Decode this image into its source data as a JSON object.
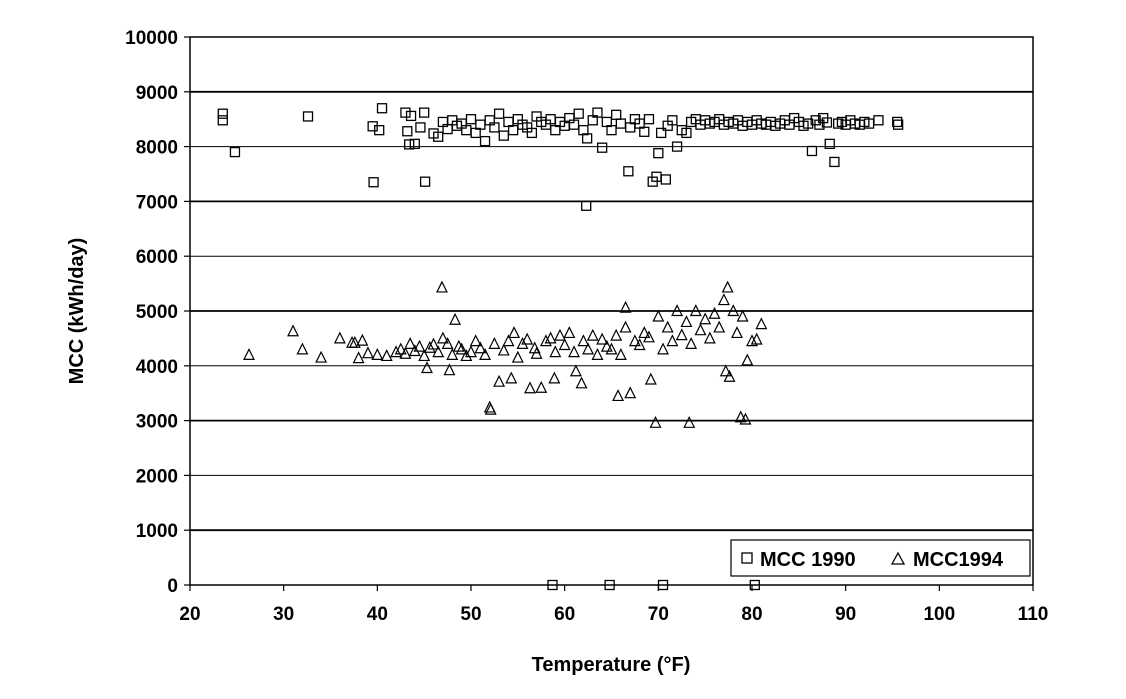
{
  "chart_data": {
    "type": "scatter",
    "title": "",
    "xlabel": "Temperature (°F)",
    "ylabel": "MCC (kWh/day)",
    "xlim": [
      20,
      110
    ],
    "ylim": [
      0,
      10000
    ],
    "x_ticks": [
      "20",
      "30",
      "40",
      "50",
      "60",
      "70",
      "80",
      "90",
      "100",
      "110"
    ],
    "y_ticks": [
      "0",
      "1000",
      "2000",
      "3000",
      "4000",
      "5000",
      "6000",
      "7000",
      "8000",
      "9000",
      "10000"
    ],
    "grid": "horizontal",
    "legend_position": "bottom-right",
    "series": [
      {
        "name": "MCC 1990",
        "marker": "square",
        "points": [
          [
            23.5,
            8600
          ],
          [
            23.5,
            8480
          ],
          [
            24.8,
            7900
          ],
          [
            32.6,
            8550
          ],
          [
            39.5,
            8370
          ],
          [
            39.6,
            7350
          ],
          [
            40.2,
            8300
          ],
          [
            40.5,
            8700
          ],
          [
            43,
            8620
          ],
          [
            43.2,
            8280
          ],
          [
            43.4,
            8040
          ],
          [
            43.6,
            8560
          ],
          [
            44,
            8050
          ],
          [
            44.6,
            8350
          ],
          [
            45,
            8620
          ],
          [
            45.1,
            7360
          ],
          [
            46,
            8240
          ],
          [
            46.5,
            8180
          ],
          [
            47,
            8450
          ],
          [
            47.5,
            8320
          ],
          [
            48,
            8480
          ],
          [
            48.5,
            8380
          ],
          [
            49,
            8420
          ],
          [
            49.5,
            8300
          ],
          [
            50,
            8500
          ],
          [
            50.5,
            8250
          ],
          [
            51,
            8400
          ],
          [
            51.5,
            8100
          ],
          [
            52,
            8480
          ],
          [
            52.5,
            8350
          ],
          [
            53,
            8600
          ],
          [
            53.5,
            8200
          ],
          [
            54,
            8450
          ],
          [
            54.5,
            8300
          ],
          [
            55,
            8500
          ],
          [
            55.5,
            8400
          ],
          [
            56,
            8350
          ],
          [
            56.5,
            8250
          ],
          [
            57,
            8550
          ],
          [
            57.5,
            8450
          ],
          [
            58,
            8400
          ],
          [
            58.5,
            8500
          ],
          [
            59,
            8300
          ],
          [
            59.5,
            8450
          ],
          [
            60,
            8380
          ],
          [
            60.5,
            8520
          ],
          [
            61,
            8400
          ],
          [
            61.5,
            8600
          ],
          [
            62,
            8300
          ],
          [
            62.4,
            8150
          ],
          [
            62.3,
            6920
          ],
          [
            63,
            8480
          ],
          [
            63.5,
            8620
          ],
          [
            64,
            7980
          ],
          [
            64.5,
            8450
          ],
          [
            65,
            8300
          ],
          [
            65.5,
            8580
          ],
          [
            66,
            8420
          ],
          [
            66.8,
            7550
          ],
          [
            67,
            8350
          ],
          [
            67.5,
            8500
          ],
          [
            68,
            8420
          ],
          [
            68.5,
            8270
          ],
          [
            69,
            8500
          ],
          [
            69.4,
            7360
          ],
          [
            69.8,
            7450
          ],
          [
            70,
            7880
          ],
          [
            70.3,
            8250
          ],
          [
            70.8,
            7400
          ],
          [
            71,
            8380
          ],
          [
            71.5,
            8480
          ],
          [
            72,
            8000
          ],
          [
            72.5,
            8300
          ],
          [
            73,
            8250
          ],
          [
            73.5,
            8450
          ],
          [
            74,
            8500
          ],
          [
            74.5,
            8400
          ],
          [
            75,
            8480
          ],
          [
            75.5,
            8420
          ],
          [
            76,
            8450
          ],
          [
            76.5,
            8500
          ],
          [
            77,
            8400
          ],
          [
            77.5,
            8450
          ],
          [
            78,
            8420
          ],
          [
            78.5,
            8480
          ],
          [
            79,
            8380
          ],
          [
            79.5,
            8450
          ],
          [
            80,
            8400
          ],
          [
            80.5,
            8480
          ],
          [
            81,
            8420
          ],
          [
            81.5,
            8400
          ],
          [
            82,
            8450
          ],
          [
            82.5,
            8380
          ],
          [
            83,
            8420
          ],
          [
            83.5,
            8480
          ],
          [
            84,
            8400
          ],
          [
            84.5,
            8520
          ],
          [
            85,
            8450
          ],
          [
            85.5,
            8380
          ],
          [
            86,
            8420
          ],
          [
            86.4,
            7920
          ],
          [
            86.8,
            8480
          ],
          [
            87.2,
            8400
          ],
          [
            87.6,
            8520
          ],
          [
            88,
            8440
          ],
          [
            88.3,
            8050
          ],
          [
            88.8,
            7720
          ],
          [
            89.2,
            8420
          ],
          [
            89.6,
            8450
          ],
          [
            90,
            8400
          ],
          [
            90.5,
            8480
          ],
          [
            91,
            8420
          ],
          [
            91.5,
            8400
          ],
          [
            92,
            8450
          ],
          [
            92.5,
            8420
          ],
          [
            93.5,
            8480
          ],
          [
            95.5,
            8450
          ],
          [
            95.6,
            8400
          ],
          [
            58.7,
            0
          ],
          [
            64.8,
            0
          ],
          [
            70.5,
            0
          ],
          [
            80.3,
            0
          ]
        ]
      },
      {
        "name": "MCC1994",
        "marker": "triangle",
        "points": [
          [
            26.3,
            4200
          ],
          [
            31,
            4630
          ],
          [
            32,
            4300
          ],
          [
            34,
            4150
          ],
          [
            36,
            4500
          ],
          [
            37.3,
            4420
          ],
          [
            37.6,
            4420
          ],
          [
            38,
            4140
          ],
          [
            38.4,
            4460
          ],
          [
            39,
            4230
          ],
          [
            40,
            4200
          ],
          [
            41,
            4180
          ],
          [
            42,
            4250
          ],
          [
            42.5,
            4300
          ],
          [
            43,
            4220
          ],
          [
            43.5,
            4400
          ],
          [
            44,
            4270
          ],
          [
            44.5,
            4350
          ],
          [
            45,
            4180
          ],
          [
            45.3,
            3960
          ],
          [
            45.6,
            4330
          ],
          [
            46,
            4390
          ],
          [
            46.5,
            4250
          ],
          [
            46.9,
            5430
          ],
          [
            47,
            4500
          ],
          [
            47.5,
            4400
          ],
          [
            47.7,
            3920
          ],
          [
            48,
            4200
          ],
          [
            48.3,
            4840
          ],
          [
            48.7,
            4350
          ],
          [
            49,
            4300
          ],
          [
            49.5,
            4180
          ],
          [
            50,
            4250
          ],
          [
            50.5,
            4450
          ],
          [
            51,
            4320
          ],
          [
            51.5,
            4200
          ],
          [
            52,
            3240
          ],
          [
            52.1,
            3200
          ],
          [
            52.5,
            4400
          ],
          [
            53,
            3710
          ],
          [
            53.5,
            4280
          ],
          [
            54,
            4450
          ],
          [
            54.3,
            3770
          ],
          [
            54.6,
            4600
          ],
          [
            55,
            4150
          ],
          [
            55.5,
            4400
          ],
          [
            56,
            4480
          ],
          [
            56.3,
            3590
          ],
          [
            56.8,
            4320
          ],
          [
            57,
            4220
          ],
          [
            57.5,
            3600
          ],
          [
            58,
            4450
          ],
          [
            58.5,
            4500
          ],
          [
            58.9,
            3770
          ],
          [
            59,
            4250
          ],
          [
            59.5,
            4550
          ],
          [
            60,
            4380
          ],
          [
            60.5,
            4600
          ],
          [
            61,
            4250
          ],
          [
            61.2,
            3900
          ],
          [
            61.8,
            3680
          ],
          [
            62,
            4450
          ],
          [
            62.5,
            4300
          ],
          [
            63,
            4550
          ],
          [
            63.5,
            4200
          ],
          [
            64,
            4480
          ],
          [
            64.5,
            4350
          ],
          [
            65,
            4300
          ],
          [
            65.5,
            4550
          ],
          [
            65.7,
            3450
          ],
          [
            66,
            4200
          ],
          [
            66.5,
            4700
          ],
          [
            66.5,
            5060
          ],
          [
            67,
            3500
          ],
          [
            67.5,
            4450
          ],
          [
            68,
            4380
          ],
          [
            68.5,
            4600
          ],
          [
            69,
            4520
          ],
          [
            69.2,
            3750
          ],
          [
            69.7,
            2960
          ],
          [
            70,
            4900
          ],
          [
            70.5,
            4300
          ],
          [
            71,
            4700
          ],
          [
            71.5,
            4450
          ],
          [
            72,
            5000
          ],
          [
            72.5,
            4560
          ],
          [
            73,
            4800
          ],
          [
            73.3,
            2960
          ],
          [
            73.5,
            4400
          ],
          [
            74,
            5000
          ],
          [
            74.5,
            4650
          ],
          [
            75,
            4850
          ],
          [
            75.5,
            4500
          ],
          [
            76,
            4950
          ],
          [
            76.5,
            4700
          ],
          [
            77,
            5200
          ],
          [
            77.4,
            5430
          ],
          [
            77.2,
            3900
          ],
          [
            77.6,
            3800
          ],
          [
            78,
            5000
          ],
          [
            78.4,
            4600
          ],
          [
            78.8,
            3060
          ],
          [
            79,
            4900
          ],
          [
            79.3,
            3020
          ],
          [
            79.5,
            4100
          ],
          [
            80,
            4450
          ],
          [
            80.5,
            4480
          ],
          [
            81,
            4760
          ]
        ]
      }
    ]
  }
}
